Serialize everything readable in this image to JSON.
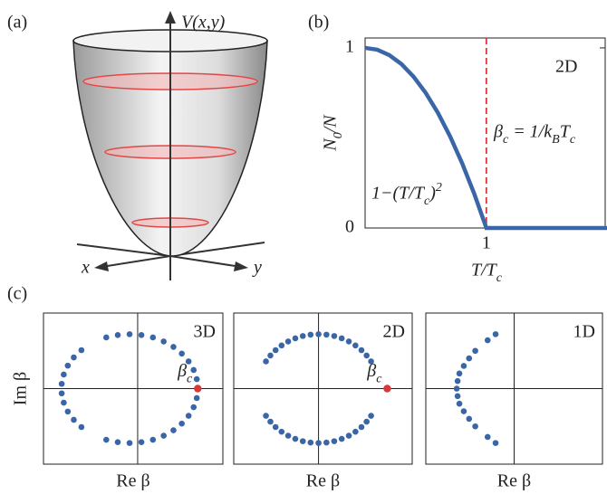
{
  "panel_labels": [
    "(a)",
    "(b)",
    "(c)"
  ],
  "diagram": {
    "z_label": "V(x,y)",
    "x_label": "x",
    "y_label": "y"
  },
  "chart_data": [
    {
      "type": "line",
      "x": [
        0,
        0.1,
        0.2,
        0.3,
        0.4,
        0.5,
        0.6,
        0.7,
        0.8,
        0.9,
        1,
        2
      ],
      "values": [
        1,
        0.99,
        0.96,
        0.91,
        0.84,
        0.75,
        0.64,
        0.51,
        0.36,
        0.19,
        0,
        0
      ],
      "color": "#3a66a8",
      "xlim": [
        0,
        1.98
      ],
      "ylim": [
        0,
        1.055
      ],
      "xticks": [
        1
      ],
      "yticks": [
        0,
        1
      ],
      "xlabel": "T/T_c",
      "ylabel": "N_0/N",
      "vline": {
        "x": 1,
        "color": "#d9383a"
      },
      "annotations": [
        {
          "text": "2D"
        },
        {
          "text": "β_c = 1/k_BT_c",
          "color": "#d9383a"
        },
        {
          "text": "1−(T/T_c)^2"
        }
      ]
    },
    {
      "type": "scatter",
      "label": "3D",
      "xlabel": "Re β",
      "ylabel": "Im β",
      "xlim": [
        -1.05,
        0.95
      ],
      "ylim": [
        -1,
        1
      ],
      "origin_lines": true,
      "color": "#3a66a8",
      "x": [
        0.659,
        0.624,
        0.568,
        0.492,
        0.399,
        0.29,
        0.17,
        0.042,
        -0.09,
        -0.222,
        -0.35,
        -0.627,
        -0.712,
        -0.779,
        -0.824,
        -0.847,
        0.659,
        0.624,
        0.568,
        0.492,
        0.399,
        0.29,
        0.17,
        0.042,
        -0.09,
        -0.222,
        -0.35,
        -0.627,
        -0.712,
        -0.779,
        -0.824,
        -0.847
      ],
      "values": [
        0.125,
        0.246,
        0.36,
        0.463,
        0.552,
        0.624,
        0.677,
        0.709,
        0.72,
        0.709,
        0.677,
        0.509,
        0.413,
        0.304,
        0.186,
        0.063,
        -0.125,
        -0.246,
        -0.36,
        -0.463,
        -0.552,
        -0.624,
        -0.677,
        -0.709,
        -0.72,
        -0.709,
        -0.677,
        -0.509,
        -0.413,
        -0.304,
        -0.186,
        -0.063
      ],
      "marker": {
        "x": 0.67,
        "y": 0,
        "label": "β_c",
        "color": "#d9383a"
      }
    },
    {
      "type": "scatter",
      "label": "2D",
      "xlabel": "Re β",
      "xlim": [
        -0.95,
        1.05
      ],
      "ylim": [
        -1,
        1
      ],
      "origin_lines": true,
      "color": "#3a66a8",
      "x": [
        0.589,
        0.539,
        0.481,
        0.414,
        0.34,
        0.26,
        0.176,
        0.089,
        0,
        -0.089,
        -0.176,
        -0.26,
        -0.34,
        -0.414,
        -0.481,
        -0.539,
        -0.589,
        0.589,
        0.539,
        0.481,
        0.414,
        0.34,
        0.26,
        0.176,
        0.089,
        0,
        -0.089,
        -0.176,
        -0.26,
        -0.34,
        -0.414,
        -0.481,
        -0.539,
        -0.589
      ],
      "values": [
        0.36,
        0.438,
        0.509,
        0.571,
        0.624,
        0.665,
        0.696,
        0.714,
        0.72,
        0.714,
        0.696,
        0.665,
        0.624,
        0.571,
        0.509,
        0.438,
        0.36,
        -0.36,
        -0.438,
        -0.509,
        -0.571,
        -0.624,
        -0.665,
        -0.696,
        -0.714,
        -0.72,
        -0.714,
        -0.696,
        -0.665,
        -0.624,
        -0.571,
        -0.509,
        -0.438,
        -0.36
      ],
      "marker": {
        "x": 0.77,
        "y": 0,
        "label": "β_c",
        "color": "#d9383a"
      }
    },
    {
      "type": "scatter",
      "label": "1D",
      "xlabel": "Re β",
      "xlim": [
        -1,
        1
      ],
      "ylim": [
        -1,
        1
      ],
      "origin_lines": true,
      "color": "#3a66a8",
      "x": [
        -0.21,
        -0.3,
        -0.44,
        -0.51,
        -0.57,
        -0.62,
        -0.64,
        -0.65,
        -0.64,
        -0.62,
        -0.57,
        -0.51,
        -0.44,
        -0.3,
        -0.21
      ],
      "values": [
        0.72,
        0.64,
        0.5,
        0.4,
        0.3,
        0.2,
        0.1,
        0,
        -0.1,
        -0.2,
        -0.3,
        -0.4,
        -0.5,
        -0.64,
        -0.72
      ]
    }
  ]
}
